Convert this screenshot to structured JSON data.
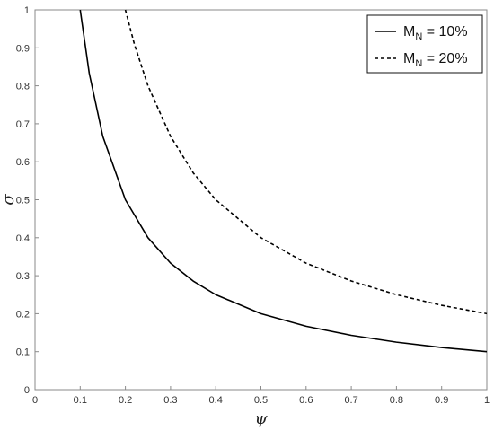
{
  "chart_data": {
    "type": "line",
    "xlabel": "ψ",
    "ylabel": "σ",
    "xlim": [
      0,
      1
    ],
    "ylim": [
      0,
      1
    ],
    "x_ticks": [
      "0",
      "0.1",
      "0.2",
      "0.3",
      "0.4",
      "0.5",
      "0.6",
      "0.7",
      "0.8",
      "0.9",
      "1"
    ],
    "y_ticks": [
      "0",
      "0.1",
      "0.2",
      "0.3",
      "0.4",
      "0.5",
      "0.6",
      "0.7",
      "0.8",
      "0.9",
      "1"
    ],
    "grid": false,
    "legend_position": "top-right",
    "series": [
      {
        "name": "M_N = 10%",
        "legend_main": "M",
        "legend_sub": "N",
        "legend_rest": " = 10%",
        "style": "solid",
        "color": "#000000",
        "x": [
          0.1,
          0.12,
          0.15,
          0.2,
          0.25,
          0.3,
          0.35,
          0.4,
          0.5,
          0.6,
          0.7,
          0.8,
          0.9,
          1.0
        ],
        "y": [
          1.0,
          0.833,
          0.667,
          0.5,
          0.4,
          0.333,
          0.286,
          0.25,
          0.2,
          0.167,
          0.143,
          0.125,
          0.111,
          0.1
        ]
      },
      {
        "name": "M_N = 20%",
        "legend_main": "M",
        "legend_sub": "N",
        "legend_rest": " = 20%",
        "style": "dashed",
        "color": "#000000",
        "x": [
          0.2,
          0.22,
          0.25,
          0.3,
          0.35,
          0.4,
          0.5,
          0.6,
          0.7,
          0.8,
          0.9,
          1.0
        ],
        "y": [
          1.0,
          0.909,
          0.8,
          0.667,
          0.571,
          0.5,
          0.4,
          0.333,
          0.286,
          0.25,
          0.222,
          0.2
        ]
      }
    ]
  }
}
